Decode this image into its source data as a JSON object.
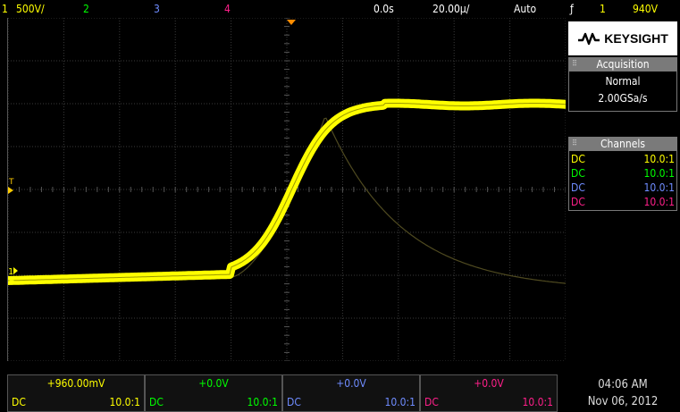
{
  "top_bar": {
    "ch1_num": "1",
    "ch1_scale": "500Ⅴ/",
    "ch2_num": "2",
    "ch3_num": "3",
    "ch4_num": "4",
    "time_delay": "0.0s",
    "time_scale": "20.00µ/",
    "trigger_mode": "Auto",
    "trigger_slope_icon": "ƒ",
    "trigger_source": "1",
    "trigger_level": "940Ⅴ"
  },
  "brand": {
    "name": "KEYSIGHT"
  },
  "acquisition": {
    "title": "Acquisition",
    "mode": "Normal",
    "rate": "2.00GSa/s"
  },
  "channels_panel": {
    "title": "Channels",
    "rows": [
      {
        "coupling": "DC",
        "probe": "10.0:1",
        "color": "#ffff00"
      },
      {
        "coupling": "DC",
        "probe": "10.0:1",
        "color": "#00ff00"
      },
      {
        "coupling": "DC",
        "probe": "10.0:1",
        "color": "#6f8cff"
      },
      {
        "coupling": "DC",
        "probe": "10.0:1",
        "color": "#ff1f8a"
      }
    ]
  },
  "bottom_channels": [
    {
      "offset": "+960.00mV",
      "coupling": "DC",
      "probe": "10.0:1",
      "color": "#ffff00"
    },
    {
      "offset": "+0.0V",
      "coupling": "DC",
      "probe": "10.0:1",
      "color": "#00ff00"
    },
    {
      "offset": "+0.0V",
      "coupling": "DC",
      "probe": "10.0:1",
      "color": "#6f8cff"
    },
    {
      "offset": "+0.0V",
      "coupling": "DC",
      "probe": "10.0:1",
      "color": "#ff1f8a"
    }
  ],
  "clock": {
    "time": "04:06 AM",
    "date": "Nov 06, 2012"
  },
  "markers": {
    "ch1_ground_label": "1",
    "trigger_level_label": "T"
  }
}
